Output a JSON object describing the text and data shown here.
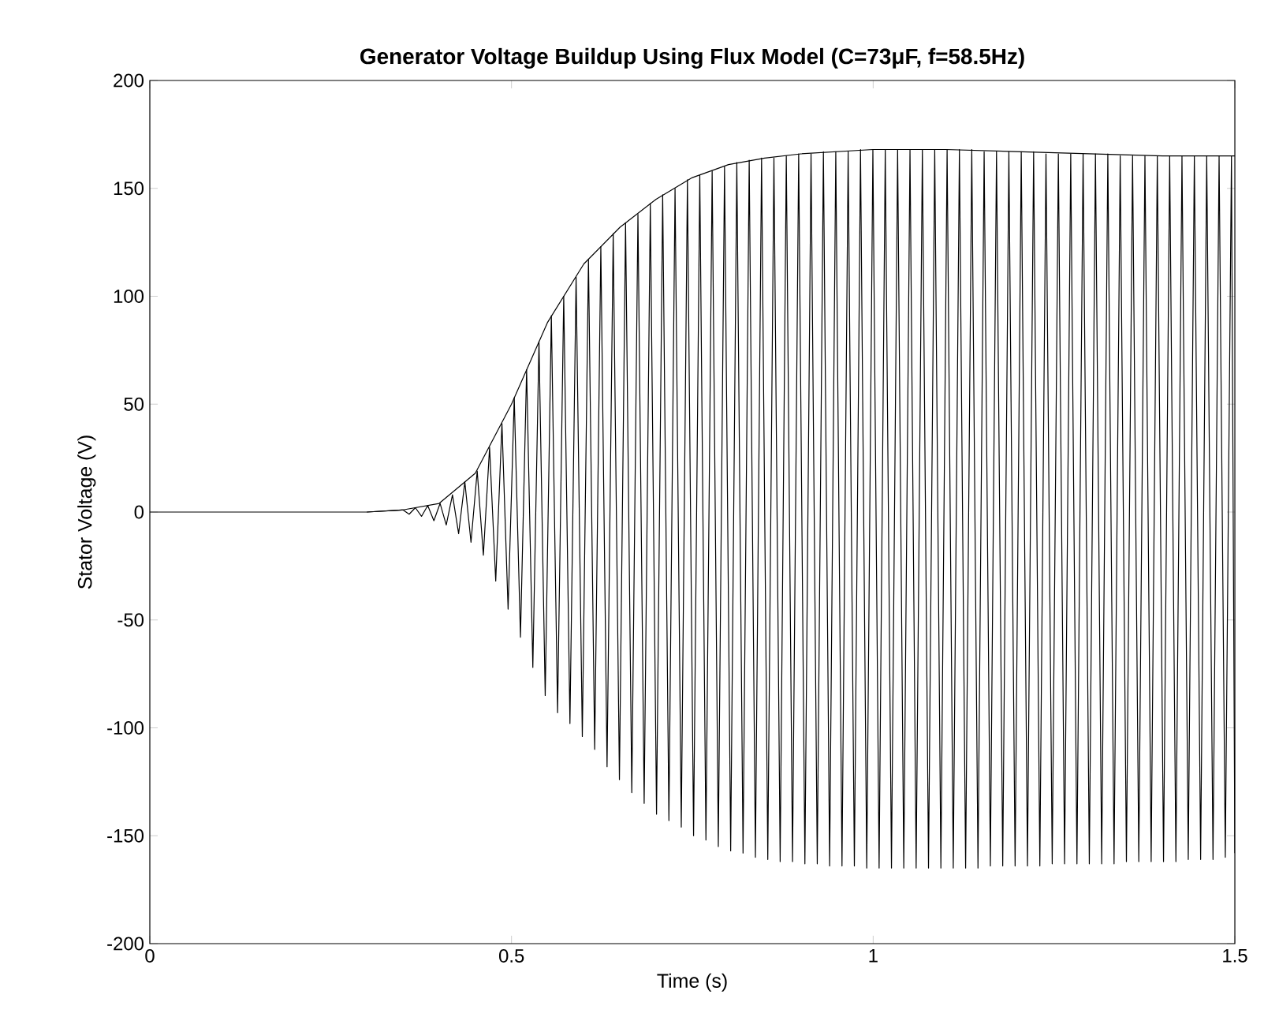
{
  "chart_data": {
    "type": "line",
    "title": "Generator Voltage Buildup Using Flux Model (C=73μF, f=58.5Hz)",
    "xlabel": "Time (s)",
    "ylabel": "Stator Voltage (V)",
    "xlim": [
      0,
      1.5
    ],
    "ylim": [
      -200,
      200
    ],
    "xticks": [
      0,
      0.5,
      1,
      1.5
    ],
    "yticks": [
      -200,
      -150,
      -100,
      -50,
      0,
      50,
      100,
      150,
      200
    ],
    "series": [
      {
        "color": "#000000",
        "x": [
          0,
          0.3,
          0.35,
          0.3585,
          0.3671,
          0.3756,
          0.3842,
          0.3927,
          0.4013,
          0.4098,
          0.4184,
          0.4269,
          0.4355,
          0.444,
          0.4526,
          0.4611,
          0.4697,
          0.4782,
          0.4868,
          0.4953,
          0.5038,
          0.5124,
          0.5209,
          0.5295,
          0.538,
          0.5466,
          0.5551,
          0.5637,
          0.5722,
          0.5808,
          0.5893,
          0.5979,
          0.6064,
          0.615,
          0.6235,
          0.6321,
          0.6406,
          0.6492,
          0.6577,
          0.6663,
          0.6748,
          0.6834,
          0.6919,
          0.7005,
          0.709,
          0.7176,
          0.7261,
          0.7347,
          0.7432,
          0.7517,
          0.7603,
          0.7688,
          0.7774,
          0.7859,
          0.7945,
          0.803,
          0.8115,
          0.8201,
          0.8286,
          0.8372,
          0.8457,
          0.8543,
          0.8628,
          0.8714,
          0.8799,
          0.8885,
          0.897,
          0.9056,
          0.9141,
          0.9227,
          0.9312,
          0.9398,
          0.9483,
          0.9569,
          0.9654,
          0.974,
          0.9825,
          0.9911,
          0.9996,
          1.0082,
          1.0167,
          1.0253,
          1.0338,
          1.0423,
          1.0509,
          1.0594,
          1.068,
          1.0765,
          1.0851,
          1.0936,
          1.1022,
          1.1107,
          1.1192,
          1.1278,
          1.1363,
          1.1449,
          1.1534,
          1.162,
          1.1705,
          1.1791,
          1.1876,
          1.1962,
          1.2047,
          1.2133,
          1.2218,
          1.2304,
          1.2389,
          1.2475,
          1.256,
          1.2646,
          1.2731,
          1.2817,
          1.2902,
          1.2988,
          1.3073,
          1.3159,
          1.3244,
          1.333,
          1.3415,
          1.3501,
          1.3586,
          1.3672,
          1.3757,
          1.3843,
          1.3928,
          1.4014,
          1.4099,
          1.4185,
          1.4269,
          1.4356,
          1.444,
          1.4527,
          1.4611,
          1.4698,
          1.4782,
          1.4868,
          1.4953,
          1.5
        ],
        "values": [
          0,
          0,
          1,
          -1,
          2,
          -2,
          3,
          -4,
          4,
          -6,
          8,
          -10,
          14,
          -14,
          19,
          -20,
          30,
          -32,
          41,
          -45,
          53,
          -58,
          66,
          -72,
          79,
          -85,
          91,
          -93,
          100,
          -98,
          109,
          -104,
          117,
          -110,
          123,
          -118,
          129,
          -124,
          134,
          -130,
          138,
          -135,
          143,
          -140,
          147,
          -143,
          150,
          -146,
          154,
          -150,
          156,
          -152,
          158,
          -155,
          160,
          -157,
          162,
          -158,
          163,
          -160,
          164,
          -161,
          164,
          -162,
          165,
          -162,
          166,
          -163,
          166,
          -163,
          167,
          -164,
          167,
          -164,
          167,
          -164,
          168,
          -165,
          168,
          -165,
          168,
          -165,
          168,
          -165,
          168,
          -165,
          168,
          -165,
          168,
          -165,
          168,
          -165,
          168,
          -165,
          168,
          -165,
          167,
          -164,
          167,
          -164,
          167,
          -164,
          167,
          -164,
          167,
          -164,
          166,
          -163,
          166,
          -163,
          166,
          -163,
          166,
          -163,
          166,
          -163,
          166,
          -163,
          165,
          -162,
          165,
          -162,
          165,
          -162,
          165,
          -162,
          165,
          -162,
          165,
          -161,
          165,
          -161,
          165,
          -161,
          165,
          -160,
          165,
          -158
        ]
      },
      {
        "color": "#000000",
        "x": [
          0.3,
          0.35,
          0.4,
          0.45,
          0.5,
          0.55,
          0.6,
          0.65,
          0.7,
          0.75,
          0.8,
          0.85,
          0.9,
          1.0,
          1.1,
          1.2,
          1.3,
          1.4,
          1.5
        ],
        "values": [
          0,
          1,
          4,
          18,
          50,
          88,
          115,
          132,
          145,
          155,
          161,
          164,
          166,
          168,
          168,
          167,
          166,
          165,
          165
        ]
      }
    ]
  }
}
